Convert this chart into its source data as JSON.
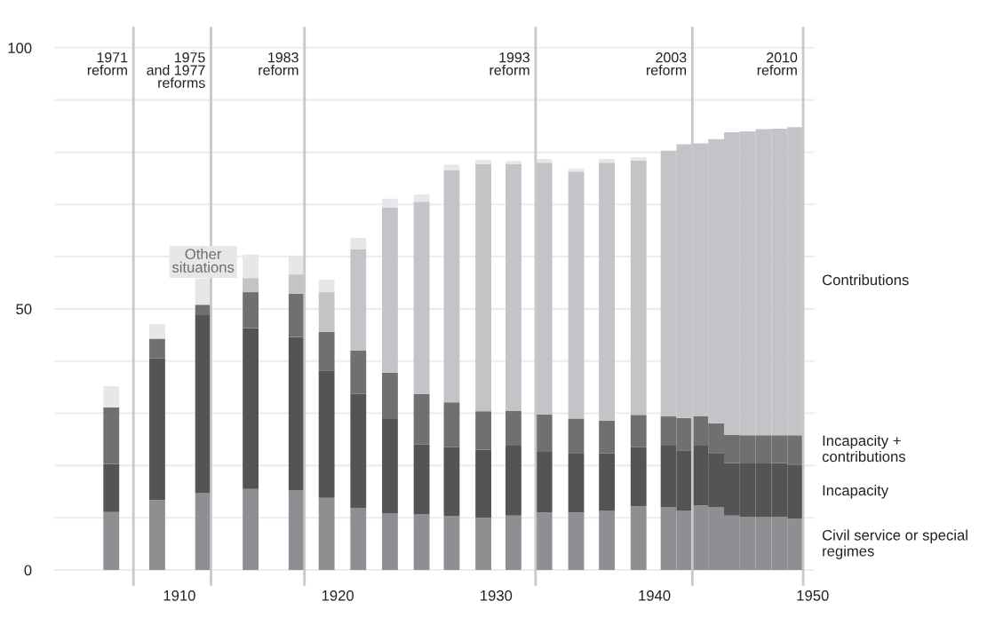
{
  "chart_data": {
    "type": "bar",
    "stacked": true,
    "x": [
      1905.7,
      1908.6,
      1911.5,
      1914.5,
      1917.4,
      1919.3,
      1921.3,
      1923.3,
      1925.3,
      1927.2,
      1929.2,
      1931.1,
      1933.05,
      1935.06,
      1937.0,
      1939.0,
      1940.9,
      1941.9,
      1942.9,
      1943.9,
      1944.9,
      1945.9,
      1946.9,
      1947.9,
      1948.9
    ],
    "series": [
      {
        "name": "Civil service or special regimes",
        "color": "#8e8f93",
        "values": [
          11.1,
          13.4,
          14.7,
          15.5,
          15.2,
          13.8,
          11.8,
          10.8,
          10.7,
          10.3,
          10.0,
          10.4,
          11.0,
          11.0,
          11.3,
          12.2,
          12.0,
          11.3,
          12.4,
          12.0,
          10.4,
          10.2,
          10.1,
          10.2,
          9.8
        ]
      },
      {
        "name": "Incapacity",
        "color": "#535554",
        "values": [
          9.2,
          27.1,
          34.1,
          30.8,
          29.4,
          24.4,
          21.9,
          18.1,
          13.3,
          13.2,
          13.0,
          13.4,
          11.6,
          11.4,
          11.0,
          11.3,
          11.8,
          11.6,
          11.4,
          10.4,
          10.1,
          10.2,
          10.3,
          10.3,
          10.4
        ]
      },
      {
        "name": "Incapacity + contributions",
        "color": "#707070",
        "values": [
          10.8,
          3.8,
          2.0,
          6.9,
          8.3,
          7.4,
          8.3,
          8.9,
          9.7,
          8.6,
          7.4,
          6.7,
          7.2,
          6.6,
          6.3,
          6.2,
          5.6,
          6.2,
          5.6,
          5.7,
          5.4,
          5.4,
          5.4,
          5.3,
          5.6
        ]
      },
      {
        "name": "Contributions",
        "color": "#c3c3c8",
        "values": [
          0,
          0,
          0,
          2.7,
          3.7,
          7.6,
          19.4,
          31.6,
          36.8,
          44.5,
          47.3,
          47.2,
          48.2,
          47.3,
          49.4,
          48.7,
          50.9,
          52.4,
          52.3,
          54.4,
          57.9,
          58.2,
          58.6,
          58.7,
          59.0
        ]
      },
      {
        "name": "Other situations",
        "color": "#e7e7e9",
        "values": [
          4.1,
          2.8,
          5.0,
          4.5,
          3.6,
          2.4,
          2.2,
          1.7,
          1.4,
          1.0,
          0.8,
          0.6,
          0.7,
          0.6,
          0.7,
          0.6,
          0,
          0,
          0,
          0,
          0,
          0,
          0,
          0,
          0
        ]
      }
    ],
    "xlim": [
      1902.1,
      1950.1
    ],
    "xticks": [
      1910,
      1920,
      1930,
      1940,
      1950
    ],
    "ylim": [
      -3,
      104
    ],
    "yticks": [
      0,
      {
        "value": 10,
        "label": null
      },
      {
        "value": 20,
        "label": null
      },
      {
        "value": 30,
        "label": null
      },
      {
        "value": 40,
        "label": null
      },
      50,
      {
        "value": 60,
        "label": null
      },
      {
        "value": 70,
        "label": null
      },
      {
        "value": 80,
        "label": null
      },
      {
        "value": 90,
        "label": null
      },
      100
    ],
    "grid": "y",
    "legend": false,
    "ref_lines": [
      {
        "axis": "x",
        "value": 1907.1,
        "label": "1971\nreform",
        "color": "#c8c8cc"
      },
      {
        "axis": "x",
        "value": 1912.0,
        "label": "1975\nand 1977\nreforms",
        "color": "#c8c8cc"
      },
      {
        "axis": "x",
        "value": 1917.9,
        "label": "1983\nreform",
        "color": "#c8c8cc"
      },
      {
        "axis": "x",
        "value": 1932.5,
        "label": "1993\nreform",
        "color": "#c8c8cc"
      },
      {
        "axis": "x",
        "value": 1942.4,
        "label": "2003\nreform",
        "color": "#c8c8cc"
      },
      {
        "axis": "x",
        "value": 1949.4,
        "label": "2010\nreform",
        "color": "#c8c8cc"
      }
    ]
  }
}
